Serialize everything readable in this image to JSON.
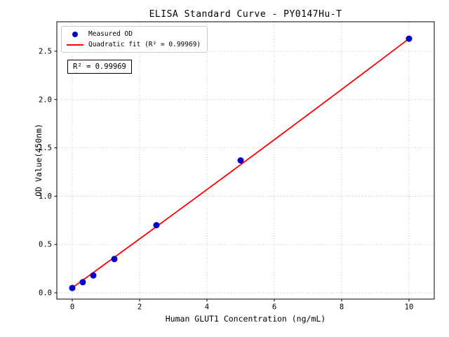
{
  "chart_data": {
    "type": "scatter",
    "title": "ELISA Standard Curve - PY0147Hu-T",
    "xlabel": "Human GLUT1 Concentration (ng/mL)",
    "ylabel": "OD Value(450nm)",
    "series": [
      {
        "name": "Measured OD",
        "type": "scatter",
        "color": "#0000cd",
        "x": [
          0,
          0.3125,
          0.625,
          1.25,
          2.5,
          5,
          10
        ],
        "y": [
          0.05,
          0.11,
          0.18,
          0.35,
          0.7,
          1.37,
          2.63
        ]
      },
      {
        "name": "Quadratic fit (R² = 0.99969)",
        "type": "line",
        "color": "#ff0000",
        "fit": {
          "form": "quadratic",
          "a": 0.0006,
          "b": 0.2518,
          "c": 0.052,
          "x_start": 0,
          "x_end": 10
        }
      }
    ],
    "xticks": [
      0,
      2,
      4,
      6,
      8,
      10
    ],
    "xtick_labels": [
      "0",
      "2",
      "4",
      "6",
      "8",
      "10"
    ],
    "yticks": [
      0,
      0.5,
      1,
      1.5,
      2,
      2.5
    ],
    "ytick_labels": [
      "0.0",
      "0.5",
      "1.0",
      "1.5",
      "2.0",
      "2.5"
    ],
    "xlim": [
      -0.458,
      10.75
    ],
    "ylim": [
      -0.065,
      2.805
    ],
    "grid": true,
    "grid_style": "dotted",
    "grid_color": "#b0b0b0",
    "axes_color": "#000000",
    "legend": {
      "position": "upper-left",
      "entries": [
        {
          "label": "Measured OD",
          "marker": "dot",
          "color": "#0000cd"
        },
        {
          "label": "Quadratic fit (R² = 0.99969)",
          "marker": "line",
          "color": "#ff0000"
        }
      ]
    },
    "annotation": "R² = 0.99969",
    "r_squared": 0.99969
  }
}
